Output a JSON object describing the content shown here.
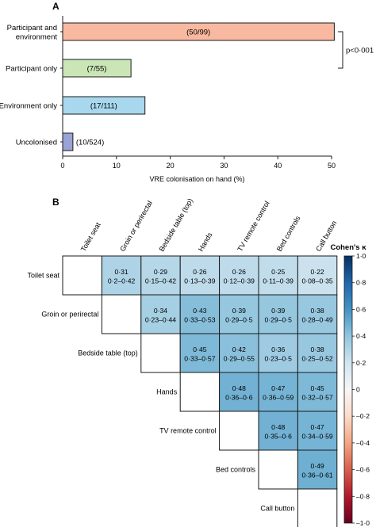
{
  "chart_data": [
    {
      "panel": "A",
      "type": "bar",
      "orientation": "horizontal",
      "categories": [
        "Participant and environment",
        "Participant only",
        "Environment only",
        "Uncolonised"
      ],
      "category_lines": [
        [
          "Participant and",
          "environment"
        ],
        [
          "Participant only"
        ],
        [
          "Environment only"
        ],
        [
          "Uncolonised"
        ]
      ],
      "values": [
        50.5,
        12.7,
        15.3,
        1.9
      ],
      "data_labels": [
        "(50/99)",
        "(7/55)",
        "(17/111)",
        "(10/524)"
      ],
      "colors": [
        "#f9b9a1",
        "#cbe6b6",
        "#a8d8ee",
        "#9aa3d6"
      ],
      "xlabel": "VRE colonisation on hand (%)",
      "xlim": [
        0,
        50
      ],
      "xticks": [
        "0",
        "10",
        "20",
        "30",
        "40",
        "50"
      ],
      "annotation": "p<0·001"
    },
    {
      "panel": "B",
      "type": "heatmap",
      "layout": "upper-triangle",
      "labels": [
        "Toilet seat",
        "Groin or perirectal",
        "Bedside table (top)",
        "Hands",
        "TV remote control",
        "Bed controls",
        "Call button"
      ],
      "cells": [
        {
          "row": 0,
          "col": 1,
          "value": 0.31,
          "text": "0·31",
          "ci": "0·2–0·42"
        },
        {
          "row": 0,
          "col": 2,
          "value": 0.29,
          "text": "0·29",
          "ci": "0·15–0·42"
        },
        {
          "row": 0,
          "col": 3,
          "value": 0.26,
          "text": "0·26",
          "ci": "0·13–0·39"
        },
        {
          "row": 0,
          "col": 4,
          "value": 0.26,
          "text": "0·26",
          "ci": "0·12–0·39"
        },
        {
          "row": 0,
          "col": 5,
          "value": 0.25,
          "text": "0·25",
          "ci": "0·11–0·39"
        },
        {
          "row": 0,
          "col": 6,
          "value": 0.22,
          "text": "0·22",
          "ci": "0·08–0·35"
        },
        {
          "row": 1,
          "col": 2,
          "value": 0.34,
          "text": "0·34",
          "ci": "0·23–0·44"
        },
        {
          "row": 1,
          "col": 3,
          "value": 0.43,
          "text": "0·43",
          "ci": "0·33–0·53"
        },
        {
          "row": 1,
          "col": 4,
          "value": 0.39,
          "text": "0·39",
          "ci": "0·29–0·5"
        },
        {
          "row": 1,
          "col": 5,
          "value": 0.39,
          "text": "0·39",
          "ci": "0·29–0·5"
        },
        {
          "row": 1,
          "col": 6,
          "value": 0.38,
          "text": "0·38",
          "ci": "0·28–0·49"
        },
        {
          "row": 2,
          "col": 3,
          "value": 0.45,
          "text": "0·45",
          "ci": "0·33–0·57"
        },
        {
          "row": 2,
          "col": 4,
          "value": 0.42,
          "text": "0·42",
          "ci": "0·29–0·55"
        },
        {
          "row": 2,
          "col": 5,
          "value": 0.36,
          "text": "0·36",
          "ci": "0·23–0·5"
        },
        {
          "row": 2,
          "col": 6,
          "value": 0.38,
          "text": "0·38",
          "ci": "0·25–0·52"
        },
        {
          "row": 3,
          "col": 4,
          "value": 0.48,
          "text": "0·48",
          "ci": "0·36–0·6"
        },
        {
          "row": 3,
          "col": 5,
          "value": 0.47,
          "text": "0·47",
          "ci": "0·36–0·59"
        },
        {
          "row": 3,
          "col": 6,
          "value": 0.45,
          "text": "0·45",
          "ci": "0·32–0·57"
        },
        {
          "row": 4,
          "col": 5,
          "value": 0.48,
          "text": "0·48",
          "ci": "0·35–0·6"
        },
        {
          "row": 4,
          "col": 6,
          "value": 0.47,
          "text": "0·47",
          "ci": "0·34–0·59"
        },
        {
          "row": 5,
          "col": 6,
          "value": 0.49,
          "text": "0·49",
          "ci": "0·36–0·61"
        }
      ],
      "colorbar": {
        "title": "Cohen's κ",
        "range": [
          -1,
          1
        ],
        "ticks": [
          "1·0",
          "0·8",
          "0·6",
          "0·4",
          "0·2",
          "0",
          "–0·2",
          "–0·4",
          "–0·6",
          "–0·8",
          "–1·0"
        ],
        "color_high": "#053061",
        "color_mid": "#f7f7f7",
        "color_low": "#67001f"
      }
    }
  ]
}
